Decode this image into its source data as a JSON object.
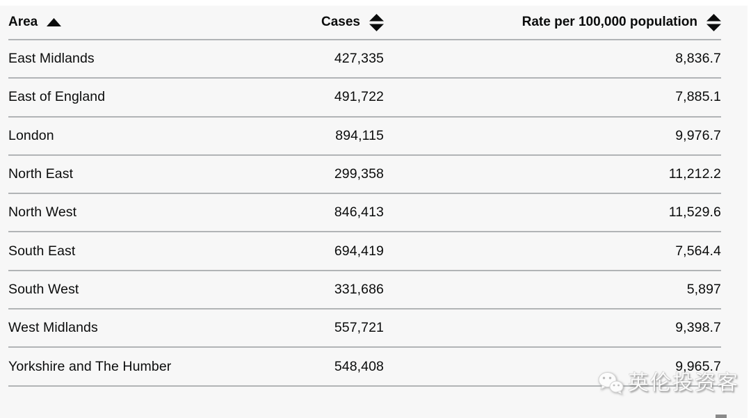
{
  "page": {
    "background_color": "#f7f7f7",
    "text_color": "#0b0c0c",
    "border_color": "#b1b4b6"
  },
  "table": {
    "columns": [
      {
        "key": "area",
        "label": "Area",
        "align": "left",
        "sort": "ascending"
      },
      {
        "key": "cases",
        "label": "Cases",
        "align": "right",
        "sort": "sortable"
      },
      {
        "key": "rate",
        "label": "Rate per 100,000 population",
        "align": "right",
        "sort": "sortable"
      }
    ],
    "rows": [
      {
        "area": "East Midlands",
        "cases": "427,335",
        "rate": "8,836.7"
      },
      {
        "area": "East of England",
        "cases": "491,722",
        "rate": "7,885.1"
      },
      {
        "area": "London",
        "cases": "894,115",
        "rate": "9,976.7"
      },
      {
        "area": "North East",
        "cases": "299,358",
        "rate": "11,212.2"
      },
      {
        "area": "North West",
        "cases": "846,413",
        "rate": "11,529.6"
      },
      {
        "area": "South East",
        "cases": "694,419",
        "rate": "7,564.4"
      },
      {
        "area": "South West",
        "cases": "331,686",
        "rate": "5,897"
      },
      {
        "area": "West Midlands",
        "cases": "557,721",
        "rate": "9,398.7"
      },
      {
        "area": "Yorkshire and The Humber",
        "cases": "548,408",
        "rate": "9,965.7"
      }
    ]
  },
  "watermark": {
    "icon": "wechat-icon",
    "text": "英伦投资客"
  },
  "chart_data": {
    "type": "table",
    "title": "",
    "columns": [
      "Area",
      "Cases",
      "Rate per 100,000 population"
    ],
    "rows": [
      [
        "East Midlands",
        427335,
        8836.7
      ],
      [
        "East of England",
        491722,
        7885.1
      ],
      [
        "London",
        894115,
        9976.7
      ],
      [
        "North East",
        299358,
        11212.2
      ],
      [
        "North West",
        846413,
        11529.6
      ],
      [
        "South East",
        694419,
        7564.4
      ],
      [
        "South West",
        331686,
        5897
      ],
      [
        "West Midlands",
        557721,
        9398.7
      ],
      [
        "Yorkshire and The Humber",
        548408,
        9965.7
      ]
    ],
    "sort": {
      "column": "Area",
      "direction": "ascending"
    }
  }
}
